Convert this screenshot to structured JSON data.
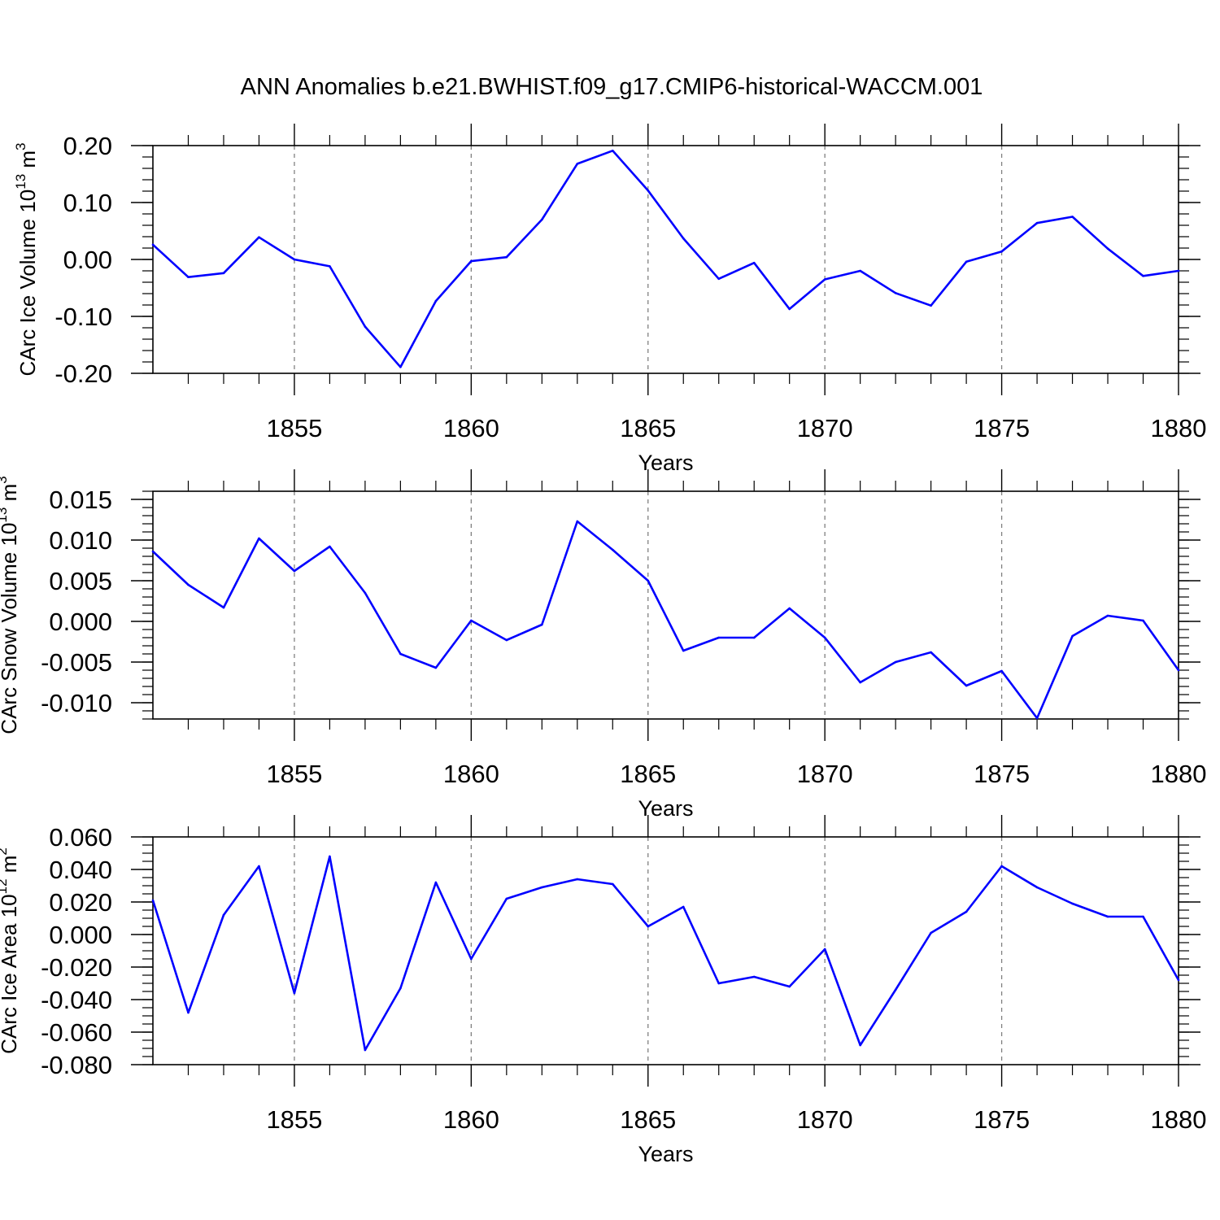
{
  "title": "ANN Anomalies b.e21.BWHIST.f09_g17.CMIP6-historical-WACCM.001",
  "colors": {
    "line": "#0000ff",
    "axis": "#000000",
    "grid": "#808080",
    "background": "#ffffff"
  },
  "chart_data": [
    {
      "type": "line",
      "name": "ice-volume",
      "ylabel": {
        "main": "CArc Ice Volume 10",
        "exp": "13",
        "unit": " m",
        "unit_exp": "3"
      },
      "xlabel": "Years",
      "xlim": [
        1851,
        1880
      ],
      "ylim": [
        -0.2,
        0.2
      ],
      "major_x": [
        1855,
        1860,
        1865,
        1870,
        1875,
        1880
      ],
      "minor_x": [
        1852,
        1853,
        1854,
        1856,
        1857,
        1858,
        1859,
        1861,
        1862,
        1863,
        1864,
        1866,
        1867,
        1868,
        1869,
        1871,
        1872,
        1873,
        1874,
        1876,
        1877,
        1878,
        1879
      ],
      "x_tick_labels": [
        "1855",
        "1860",
        "1865",
        "1870",
        "1875",
        "1880"
      ],
      "y_ticks": [
        0.2,
        0.1,
        0.0,
        -0.1,
        -0.2
      ],
      "y_tick_labels": [
        "0.20",
        "0.10",
        "0.00",
        "-0.10",
        "-0.20"
      ],
      "y_minor_step": 0.02,
      "x": [
        1851,
        1852,
        1853,
        1854,
        1855,
        1856,
        1857,
        1858,
        1859,
        1860,
        1861,
        1862,
        1863,
        1864,
        1865,
        1866,
        1867,
        1868,
        1869,
        1870,
        1871,
        1872,
        1873,
        1874,
        1875,
        1876,
        1877,
        1878,
        1879,
        1880
      ],
      "values": [
        0.026,
        -0.031,
        -0.024,
        0.039,
        0.0,
        -0.012,
        -0.118,
        -0.189,
        -0.073,
        -0.003,
        0.004,
        0.07,
        0.168,
        0.191,
        0.121,
        0.037,
        -0.034,
        -0.006,
        -0.087,
        -0.035,
        -0.02,
        -0.059,
        -0.081,
        -0.004,
        0.014,
        0.064,
        0.075,
        0.019,
        -0.029,
        -0.02
      ]
    },
    {
      "type": "line",
      "name": "snow-volume",
      "ylabel": {
        "main": "CArc Snow Volume 10",
        "exp": "13",
        "unit": " m",
        "unit_exp": "3"
      },
      "xlabel": "Years",
      "xlim": [
        1851,
        1880
      ],
      "ylim": [
        -0.012,
        0.016
      ],
      "major_x": [
        1855,
        1860,
        1865,
        1870,
        1875,
        1880
      ],
      "minor_x": [
        1852,
        1853,
        1854,
        1856,
        1857,
        1858,
        1859,
        1861,
        1862,
        1863,
        1864,
        1866,
        1867,
        1868,
        1869,
        1871,
        1872,
        1873,
        1874,
        1876,
        1877,
        1878,
        1879
      ],
      "x_tick_labels": [
        "1855",
        "1860",
        "1865",
        "1870",
        "1875",
        "1880"
      ],
      "y_ticks": [
        0.015,
        0.01,
        0.005,
        0.0,
        -0.005,
        -0.01
      ],
      "y_tick_labels": [
        "0.015",
        "0.010",
        "0.005",
        "0.000",
        "-0.005",
        "-0.010"
      ],
      "y_minor_step": 0.001,
      "x": [
        1851,
        1852,
        1853,
        1854,
        1855,
        1856,
        1857,
        1858,
        1859,
        1860,
        1861,
        1862,
        1863,
        1864,
        1865,
        1866,
        1867,
        1868,
        1869,
        1870,
        1871,
        1872,
        1873,
        1874,
        1875,
        1876,
        1877,
        1878,
        1879,
        1880
      ],
      "values": [
        0.0086,
        0.0045,
        0.0017,
        0.0102,
        0.0062,
        0.0092,
        0.0035,
        -0.004,
        -0.0057,
        0.0001,
        -0.0023,
        -0.0004,
        0.0123,
        0.0088,
        0.005,
        -0.0036,
        -0.002,
        -0.002,
        0.0016,
        -0.002,
        -0.0075,
        -0.005,
        -0.0038,
        -0.0079,
        -0.0061,
        -0.0119,
        -0.0018,
        0.0007,
        0.0001,
        -0.006
      ]
    },
    {
      "type": "line",
      "name": "ice-area",
      "ylabel": {
        "main": "CArc Ice Area 10",
        "exp": "12",
        "unit": " m",
        "unit_exp": "2"
      },
      "xlabel": "Years",
      "xlim": [
        1851,
        1880
      ],
      "ylim": [
        -0.08,
        0.06
      ],
      "major_x": [
        1855,
        1860,
        1865,
        1870,
        1875,
        1880
      ],
      "minor_x": [
        1852,
        1853,
        1854,
        1856,
        1857,
        1858,
        1859,
        1861,
        1862,
        1863,
        1864,
        1866,
        1867,
        1868,
        1869,
        1871,
        1872,
        1873,
        1874,
        1876,
        1877,
        1878,
        1879
      ],
      "x_tick_labels": [
        "1855",
        "1860",
        "1865",
        "1870",
        "1875",
        "1880"
      ],
      "y_ticks": [
        0.06,
        0.04,
        0.02,
        0.0,
        -0.02,
        -0.04,
        -0.06,
        -0.08
      ],
      "y_tick_labels": [
        "0.060",
        "0.040",
        "0.020",
        "0.000",
        "-0.020",
        "-0.040",
        "-0.060",
        "-0.080"
      ],
      "y_minor_step": 0.005,
      "x": [
        1851,
        1852,
        1853,
        1854,
        1855,
        1856,
        1857,
        1858,
        1859,
        1860,
        1861,
        1862,
        1863,
        1864,
        1865,
        1866,
        1867,
        1868,
        1869,
        1870,
        1871,
        1872,
        1873,
        1874,
        1875,
        1876,
        1877,
        1878,
        1879,
        1880
      ],
      "values": [
        0.021,
        -0.048,
        0.012,
        0.042,
        -0.036,
        0.048,
        -0.071,
        -0.033,
        0.032,
        -0.015,
        0.022,
        0.029,
        0.034,
        0.031,
        0.005,
        0.017,
        -0.03,
        -0.026,
        -0.032,
        -0.009,
        -0.068,
        -0.034,
        0.001,
        0.014,
        0.042,
        0.029,
        0.019,
        0.011,
        0.011,
        -0.028
      ]
    }
  ]
}
